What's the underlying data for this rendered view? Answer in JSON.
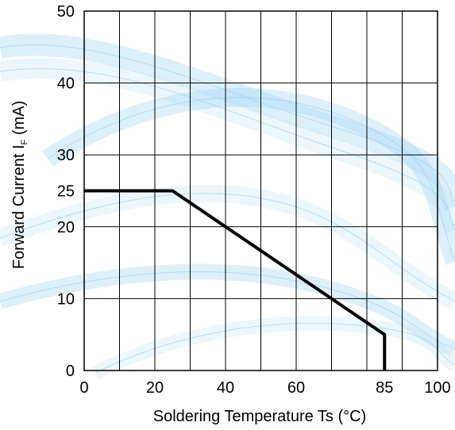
{
  "chart_data": {
    "type": "line",
    "xlabel": "Soldering Temperature Ts (°C)",
    "ylabel": {
      "prefix": "Forward Current   I",
      "subscript": "F",
      "suffix": "  (mA)"
    },
    "xlim": [
      0,
      100
    ],
    "ylim": [
      0,
      50
    ],
    "x_ticks": [
      0,
      20,
      40,
      60,
      85,
      100
    ],
    "y_ticks": [
      0,
      10,
      20,
      25,
      30,
      40,
      50
    ],
    "x_gridlines": [
      0,
      10,
      20,
      30,
      40,
      50,
      60,
      70,
      80,
      90,
      100
    ],
    "y_gridlines": [
      0,
      10,
      20,
      30,
      40,
      50
    ],
    "grid": true,
    "series": [
      {
        "x": [
          0,
          25,
          85,
          85
        ],
        "y": [
          25,
          25,
          5,
          0
        ]
      }
    ],
    "colors": {
      "line": "#000000",
      "grid": "#000000",
      "wave_a": "#9fd4f0",
      "wave_b": "#c9e8f7"
    }
  }
}
